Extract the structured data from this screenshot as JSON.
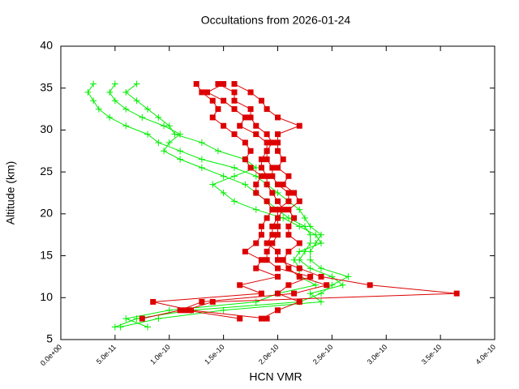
{
  "chart_data": {
    "type": "line",
    "title": "Occultations from 2026-01-24",
    "x_label": "HCN VMR",
    "y_label": "Altitude (km)",
    "xlim": [
      0,
      4e-10
    ],
    "ylim": [
      5,
      40
    ],
    "xticks": [
      {
        "value": 0,
        "label": "0.0e+00"
      },
      {
        "value": 5e-11,
        "label": "5.0e-11"
      },
      {
        "value": 1e-10,
        "label": "1.0e-10"
      },
      {
        "value": 1.5e-10,
        "label": "1.5e-10"
      },
      {
        "value": 2e-10,
        "label": "2.0e-10"
      },
      {
        "value": 2.5e-10,
        "label": "2.5e-10"
      },
      {
        "value": 3e-10,
        "label": "3.0e-10"
      },
      {
        "value": 3.5e-10,
        "label": "3.5e-10"
      },
      {
        "value": 4e-10,
        "label": "4.0e-10"
      }
    ],
    "yticks": [
      5,
      10,
      15,
      20,
      25,
      30,
      35,
      40
    ],
    "series": [
      {
        "color": "#00ee00",
        "marker": "plus",
        "x": [
          5e-11,
          7e-11,
          1.2e-10,
          2.2e-10,
          2.4e-10,
          2.5e-10,
          2.65e-10,
          2.4e-10,
          2.3e-10,
          2.3e-10,
          2.35e-10,
          2.4e-10,
          2.3e-10,
          2.25e-10,
          2.2e-10,
          2.1e-10,
          2e-10,
          1.9e-10,
          1.8e-10,
          1.6e-10,
          1.3e-10,
          1.1e-10,
          9e-11,
          8e-11,
          6e-11,
          4.5e-11,
          3.5e-11,
          3e-11,
          2.5e-11,
          3e-11
        ],
        "values": [
          6.5,
          7.5,
          8.5,
          9.5,
          10.5,
          11.5,
          12.5,
          13.5,
          14.5,
          15.5,
          16.5,
          17.5,
          18.5,
          19.5,
          20.5,
          21.5,
          22.5,
          23.5,
          24.5,
          25.5,
          26.5,
          27.5,
          28.5,
          29.5,
          30.5,
          31.5,
          32.5,
          33.5,
          34.5,
          35.5
        ]
      },
      {
        "color": "#00ee00",
        "marker": "plus",
        "x": [
          5.5e-11,
          9e-11,
          1.5e-10,
          2.4e-10,
          2.3e-10,
          2.6e-10,
          2.5e-10,
          2.3e-10,
          2.2e-10,
          2.25e-10,
          2.3e-10,
          2.3e-10,
          2.25e-10,
          2.1e-10,
          2e-10,
          1.9e-10,
          1.8e-10,
          1.7e-10,
          1.5e-10,
          1.3e-10,
          1.1e-10,
          9.5e-11,
          1e-10,
          1.1e-10,
          9.5e-11,
          7.5e-11,
          6e-11,
          5e-11,
          4.5e-11,
          5e-11
        ],
        "values": [
          6.5,
          7.5,
          8.5,
          9.5,
          10.5,
          11.5,
          12.5,
          13.5,
          14.5,
          15.5,
          16.5,
          17.5,
          18.5,
          19.5,
          20.5,
          21.5,
          22.5,
          23.5,
          24.5,
          25.5,
          26.5,
          27.5,
          28.5,
          29.5,
          30.5,
          31.5,
          32.5,
          33.5,
          34.5,
          35.5
        ]
      },
      {
        "color": "#00ee00",
        "marker": "plus",
        "x": [
          8e-11,
          6e-11,
          1e-10,
          1.8e-10,
          2e-10,
          2.35e-10,
          2.2e-10,
          2.2e-10,
          2.15e-10,
          2.2e-10,
          2.4e-10,
          2.35e-10,
          2.2e-10,
          2.05e-10,
          1.8e-10,
          1.6e-10,
          1.5e-10,
          1.4e-10,
          1.6e-10,
          1.8e-10,
          1.7e-10,
          1.45e-10,
          1.3e-10,
          1.05e-10,
          1e-10,
          9e-11,
          8e-11,
          7e-11,
          6e-11,
          7e-11
        ],
        "values": [
          6.5,
          7.5,
          8.5,
          9.5,
          10.5,
          11.5,
          12.5,
          13.5,
          14.5,
          15.5,
          16.5,
          17.5,
          18.5,
          19.5,
          20.5,
          21.5,
          22.5,
          23.5,
          24.5,
          25.5,
          26.5,
          27.5,
          28.5,
          29.5,
          30.5,
          31.5,
          32.5,
          33.5,
          34.5,
          35.5
        ]
      },
      {
        "color": "#dd0000",
        "marker": "square",
        "x": [
          1.85e-10,
          2e-10,
          2.2e-10,
          2e-10,
          2.1e-10,
          2.3e-10,
          2e-10,
          1.9e-10,
          1.9e-10,
          1.95e-10,
          2e-10,
          2e-10,
          2e-10,
          2.05e-10,
          2e-10,
          1.95e-10,
          1.9e-10,
          1.9e-10,
          1.85e-10,
          1.85e-10,
          1.9e-10,
          1.9e-10,
          1.8e-10,
          1.65e-10,
          1.7e-10,
          1.6e-10,
          1.5e-10,
          1.35e-10,
          1.5e-10
        ],
        "values": [
          7.5,
          8.5,
          9.5,
          10.5,
          11.5,
          12.5,
          13.5,
          14.5,
          15.5,
          16.5,
          17.5,
          18.5,
          19.5,
          20.5,
          21.5,
          22.5,
          23.5,
          24.5,
          25.5,
          26.5,
          27.5,
          28.5,
          29.5,
          30.5,
          31.5,
          32.5,
          33.5,
          34.5,
          35.5
        ]
      },
      {
        "color": "#dd0000",
        "marker": "square",
        "x": [
          7.5e-11,
          1.1e-10,
          1.3e-10,
          2.15e-10,
          2.45e-10,
          2.2e-10,
          2.1e-10,
          2.05e-10,
          2.1e-10,
          2.2e-10,
          2.1e-10,
          2.1e-10,
          2.15e-10,
          2.1e-10,
          2.2e-10,
          2.15e-10,
          2.05e-10,
          2.1e-10,
          2e-10,
          2.05e-10,
          2e-10,
          2e-10,
          2e-10,
          2.2e-10,
          2e-10,
          1.9e-10,
          1.85e-10,
          1.75e-10,
          1.6e-10
        ],
        "values": [
          7.5,
          8.5,
          9.5,
          10.5,
          11.5,
          12.5,
          13.5,
          14.5,
          15.5,
          16.5,
          17.5,
          18.5,
          19.5,
          20.5,
          21.5,
          22.5,
          23.5,
          24.5,
          25.5,
          26.5,
          27.5,
          28.5,
          29.5,
          30.5,
          31.5,
          32.5,
          33.5,
          34.5,
          35.5
        ]
      },
      {
        "color": "#dd0000",
        "marker": "square",
        "x": [
          1.9e-10,
          1.2e-10,
          8.5e-11,
          1.85e-10,
          1.65e-10,
          2e-10,
          1.8e-10,
          1.85e-10,
          1.7e-10,
          1.8e-10,
          1.85e-10,
          1.85e-10,
          1.9e-10,
          1.95e-10,
          1.9e-10,
          1.8e-10,
          1.8e-10,
          1.85e-10,
          1.75e-10,
          1.7e-10,
          1.75e-10,
          1.7e-10,
          1.6e-10,
          1.5e-10,
          1.4e-10,
          1.45e-10,
          1.4e-10,
          1.3e-10,
          1.25e-10
        ],
        "values": [
          7.5,
          8.5,
          9.5,
          10.5,
          11.5,
          12.5,
          13.5,
          14.5,
          15.5,
          16.5,
          17.5,
          18.5,
          19.5,
          20.5,
          21.5,
          22.5,
          23.5,
          24.5,
          25.5,
          26.5,
          27.5,
          28.5,
          29.5,
          30.5,
          31.5,
          32.5,
          33.5,
          34.5,
          35.5
        ]
      },
      {
        "color": "#dd0000",
        "marker": "square",
        "x": [
          1.65e-10,
          1.15e-10,
          1.4e-10,
          3.65e-10,
          2.85e-10,
          2.4e-10,
          2.2e-10,
          2e-10,
          2e-10,
          1.9e-10,
          1.95e-10,
          1.95e-10,
          2e-10,
          2e-10,
          2.1e-10,
          2.1e-10,
          2e-10,
          1.95e-10,
          1.95e-10,
          1.9e-10,
          1.9e-10,
          1.95e-10,
          1.9e-10,
          1.8e-10,
          1.75e-10,
          1.75e-10,
          1.6e-10,
          1.6e-10,
          1.45e-10
        ],
        "values": [
          7.5,
          8.5,
          9.5,
          10.5,
          11.5,
          12.5,
          13.5,
          14.5,
          15.5,
          16.5,
          17.5,
          18.5,
          19.5,
          20.5,
          21.5,
          22.5,
          23.5,
          24.5,
          25.5,
          26.5,
          27.5,
          28.5,
          29.5,
          30.5,
          31.5,
          32.5,
          33.5,
          34.5,
          35.5
        ]
      }
    ]
  }
}
